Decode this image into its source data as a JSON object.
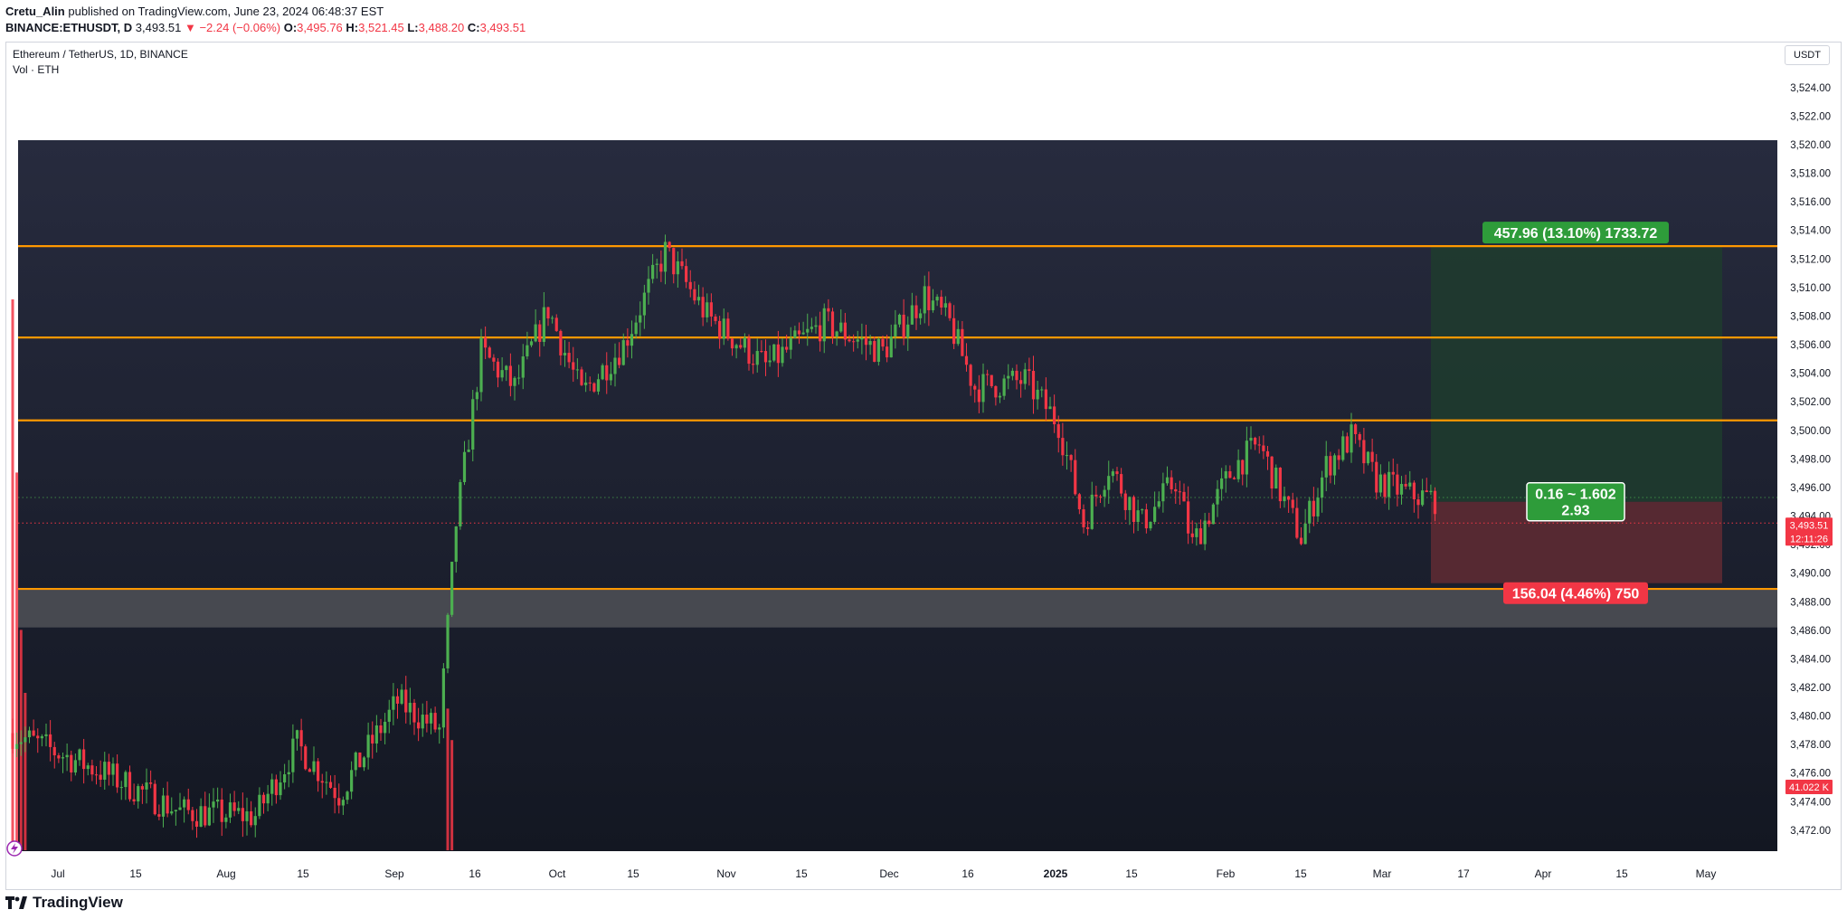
{
  "header": {
    "author": "Cretu_Alin",
    "published": "published on TradingView.com, June 23, 2024 06:48:37 EST",
    "symbol": "BINANCE:ETHUSDT, D",
    "last": "3,493.51",
    "change": "▼ −2.24 (−0.06%)",
    "o_label": "O:",
    "o": "3,495.76",
    "h_label": "H:",
    "h": "3,521.45",
    "l_label": "L:",
    "l": "3,488.20",
    "c_label": "C:",
    "c": "3,493.51"
  },
  "legend": {
    "title": "Ethereum / TetherUS, 1D, BINANCE",
    "volume": "Vol · ETH"
  },
  "currency_button": "USDT",
  "footer": {
    "brand": "TradingView"
  },
  "colors": {
    "up": "#4caf50",
    "down": "#f23645",
    "level_line": "#ff9800",
    "panel_bg_top": "#272b3e",
    "panel_bg_bottom": "#131722",
    "target_zone": "#1e3c2e",
    "stop_zone": "#5a2a33",
    "support_band": "#4a4c52"
  },
  "chart_data": {
    "type": "candlestick",
    "title": "Ethereum / TetherUS, 1D, BINANCE",
    "ylim": [
      3470.6,
      3525.7
    ],
    "y_ticks": [
      "3,524.00",
      "3,522.00",
      "3,520.00",
      "3,518.00",
      "3,516.00",
      "3,514.00",
      "3,512.00",
      "3,510.00",
      "3,508.00",
      "3,506.00",
      "3,504.00",
      "3,502.00",
      "3,500.00",
      "3,498.00",
      "3,496.00",
      "3,494.00",
      "3,492.00",
      "3,490.00",
      "3,488.00",
      "3,486.00",
      "3,484.00",
      "3,482.00",
      "3,480.00",
      "3,478.00",
      "3,476.00",
      "3,474.00",
      "3,472.00"
    ],
    "x_ticks": [
      "Jul",
      "15",
      "Aug",
      "15",
      "Sep",
      "16",
      "Oct",
      "15",
      "Nov",
      "15",
      "Dec",
      "16",
      "2025",
      "15",
      "Feb",
      "15",
      "Mar",
      "17",
      "Apr",
      "15",
      "May"
    ],
    "horizontal_levels": [
      3512.9,
      3506.5,
      3500.7,
      3488.9
    ],
    "support_zone": [
      3486.2,
      3488.9
    ],
    "position": {
      "entry": 3495.0,
      "target": 3512.9,
      "stop": 3489.3,
      "target_label": "457.96 (13.10%) 1733.72",
      "ratio_label": "0.16 ~ 1.602",
      "ratio_value": "2.93",
      "stop_label": "156.04 (4.46%) 750"
    },
    "price_badge": "3,493.51",
    "countdown_badge": "12:11:26",
    "volume_badge": "41.022 K",
    "segments": [
      {
        "from": 0,
        "to": 22,
        "start": 3478.8,
        "end": 3476.0
      },
      {
        "from": 22,
        "to": 40,
        "start": 3476.0,
        "end": 3473.3
      },
      {
        "from": 40,
        "to": 58,
        "start": 3473.3,
        "end": 3473.0
      },
      {
        "from": 58,
        "to": 68,
        "start": 3473.0,
        "end": 3478.0
      },
      {
        "from": 68,
        "to": 78,
        "start": 3478.0,
        "end": 3474.5
      },
      {
        "from": 78,
        "to": 92,
        "start": 3474.5,
        "end": 3481.0
      },
      {
        "from": 92,
        "to": 102,
        "start": 3481.0,
        "end": 3479.0
      },
      {
        "from": 102,
        "to": 106,
        "start": 3479.0,
        "end": 3493.5
      },
      {
        "from": 106,
        "to": 112,
        "start": 3493.5,
        "end": 3505.5
      },
      {
        "from": 112,
        "to": 120,
        "start": 3505.5,
        "end": 3503.0
      },
      {
        "from": 120,
        "to": 128,
        "start": 3503.0,
        "end": 3508.5
      },
      {
        "from": 128,
        "to": 136,
        "start": 3508.5,
        "end": 3502.5
      },
      {
        "from": 136,
        "to": 146,
        "start": 3502.5,
        "end": 3506.0
      },
      {
        "from": 146,
        "to": 156,
        "start": 3506.0,
        "end": 3512.5
      },
      {
        "from": 156,
        "to": 166,
        "start": 3512.5,
        "end": 3508.0
      },
      {
        "from": 166,
        "to": 180,
        "start": 3508.0,
        "end": 3504.5
      },
      {
        "from": 180,
        "to": 194,
        "start": 3504.5,
        "end": 3507.5
      },
      {
        "from": 194,
        "to": 208,
        "start": 3507.5,
        "end": 3505.5
      },
      {
        "from": 208,
        "to": 218,
        "start": 3505.5,
        "end": 3509.5
      },
      {
        "from": 218,
        "to": 224,
        "start": 3509.5,
        "end": 3507.5
      },
      {
        "from": 224,
        "to": 230,
        "start": 3507.5,
        "end": 3503.0
      },
      {
        "from": 230,
        "to": 242,
        "start": 3503.0,
        "end": 3503.5
      },
      {
        "from": 242,
        "to": 250,
        "start": 3503.5,
        "end": 3500.5
      },
      {
        "from": 250,
        "to": 256,
        "start": 3500.5,
        "end": 3493.5
      },
      {
        "from": 256,
        "to": 262,
        "start": 3493.5,
        "end": 3497.5
      },
      {
        "from": 262,
        "to": 270,
        "start": 3497.5,
        "end": 3493.5
      },
      {
        "from": 270,
        "to": 278,
        "start": 3493.5,
        "end": 3496.5
      },
      {
        "from": 278,
        "to": 282,
        "start": 3496.5,
        "end": 3492.0
      },
      {
        "from": 282,
        "to": 292,
        "start": 3492.0,
        "end": 3497.5
      },
      {
        "from": 292,
        "to": 298,
        "start": 3497.5,
        "end": 3499.0
      },
      {
        "from": 298,
        "to": 304,
        "start": 3499.0,
        "end": 3495.0
      },
      {
        "from": 304,
        "to": 308,
        "start": 3495.0,
        "end": 3492.5
      },
      {
        "from": 308,
        "to": 314,
        "start": 3492.5,
        "end": 3497.5
      },
      {
        "from": 314,
        "to": 320,
        "start": 3497.5,
        "end": 3499.5
      },
      {
        "from": 320,
        "to": 326,
        "start": 3499.5,
        "end": 3496.5
      },
      {
        "from": 326,
        "to": 334,
        "start": 3496.5,
        "end": 3495.5
      },
      {
        "from": 334,
        "to": 340,
        "start": 3495.5,
        "end": 3495.2
      }
    ],
    "volume_bars": [
      {
        "i": 0,
        "v": 0.7
      },
      {
        "i": 1,
        "v": 0.48
      },
      {
        "i": 2,
        "v": 0.28
      },
      {
        "i": 3,
        "v": 0.2
      },
      {
        "i": 104,
        "v": 0.18
      },
      {
        "i": 105,
        "v": 0.14
      }
    ]
  }
}
